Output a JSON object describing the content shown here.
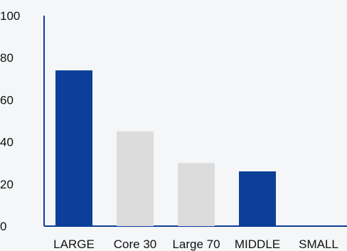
{
  "chart_data": {
    "type": "bar",
    "categories": [
      "LARGE",
      "Core 30",
      "Large 70",
      "MIDDLE",
      "SMALL"
    ],
    "values": [
      74,
      45,
      30,
      26,
      0
    ],
    "bar_colors": [
      "#0b3f99",
      "#dcdcdc",
      "#dcdcdc",
      "#0b3f99",
      "#dcdcdc"
    ],
    "ylim": [
      0,
      100
    ],
    "yticks": [
      "0",
      "20",
      "40",
      "60",
      "80",
      "100"
    ],
    "grid": false,
    "axis_color": "#0b3f99",
    "background": "#f4f6f8",
    "title": "",
    "xlabel": "",
    "ylabel": ""
  }
}
